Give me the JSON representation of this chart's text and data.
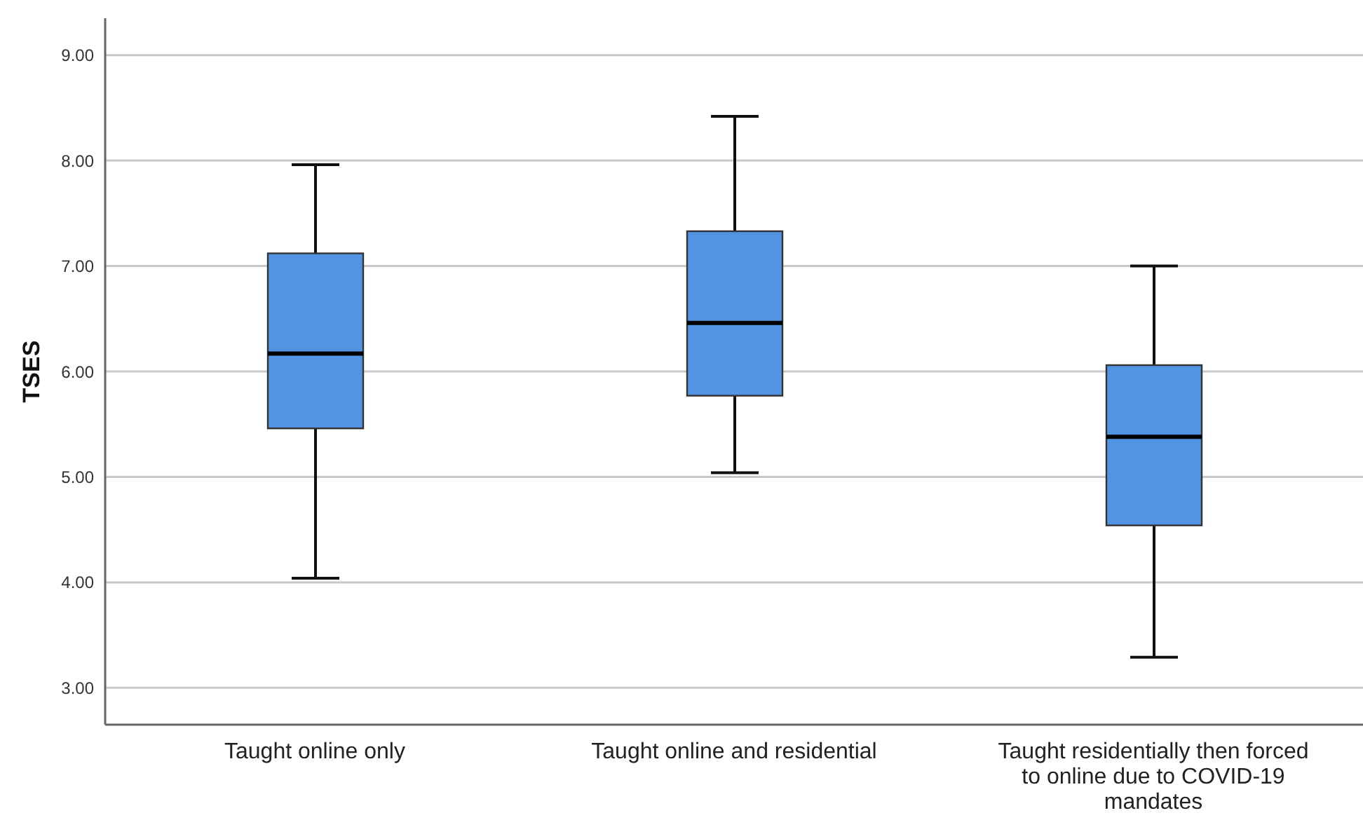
{
  "chart_data": {
    "type": "box",
    "ylabel": "TSES",
    "categories": [
      "Taught online only",
      "Taught online and residential",
      "Taught residentially then forced to online due to COVID-19 mandates"
    ],
    "boxes": [
      {
        "low": 4.04,
        "q1": 5.46,
        "median": 6.17,
        "q3": 7.12,
        "high": 7.96
      },
      {
        "low": 5.04,
        "q1": 5.77,
        "median": 6.46,
        "q3": 7.33,
        "high": 8.42
      },
      {
        "low": 3.29,
        "q1": 4.54,
        "median": 5.38,
        "q3": 6.06,
        "high": 7.0
      }
    ],
    "color": "#5294e2",
    "ylim": [
      2.65,
      9.35
    ],
    "yticks": [
      {
        "value": 3,
        "label": "3.00"
      },
      {
        "value": 4,
        "label": "4.00"
      },
      {
        "value": 5,
        "label": "5.00"
      },
      {
        "value": 6,
        "label": "6.00"
      },
      {
        "value": 7,
        "label": "7.00"
      },
      {
        "value": 8,
        "label": "8.00"
      },
      {
        "value": 9,
        "label": "9.00"
      }
    ],
    "grid": "y"
  }
}
